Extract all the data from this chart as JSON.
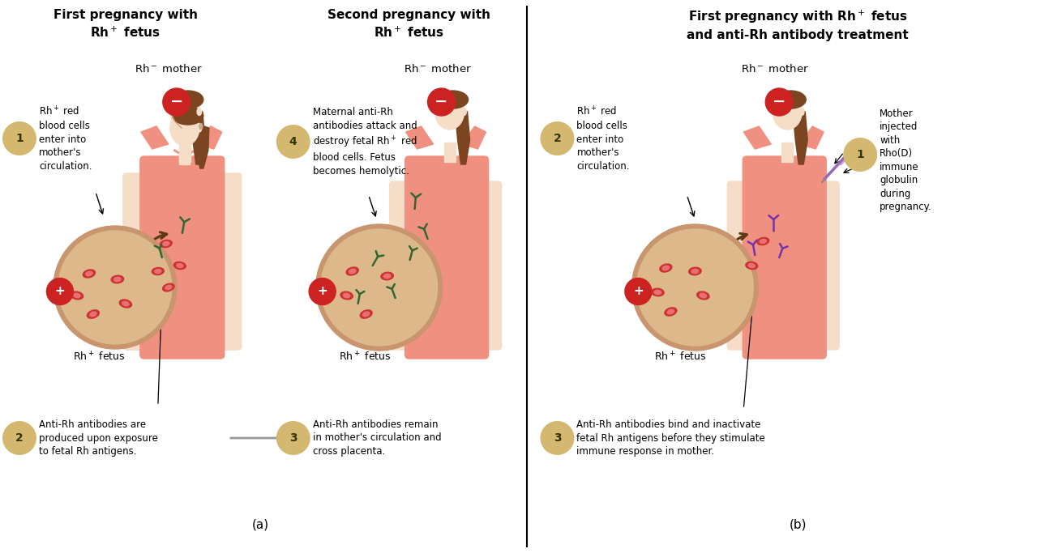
{
  "bg_color": "#ffffff",
  "fig_width": 12.99,
  "fig_height": 6.83,
  "title1": "First pregnancy with\nRh$^+$ fetus",
  "title2": "Second pregnancy with\nRh$^+$ fetus",
  "title3": "First pregnancy with Rh$^+$ fetus\nand anti-Rh antibody treatment",
  "mother_label": "Rh$^-$ mother",
  "fetus_label": "Rh$^+$ fetus",
  "label_a": "(a)",
  "label_b": "(b)",
  "rbc_color": "#cc3333",
  "antibody_green": "#336633",
  "antibody_purple": "#7733aa",
  "womb_outer": "#c8956e",
  "womb_inner": "#ddb88a",
  "skin_color": "#f5ddc8",
  "top_color": "#f09080",
  "hair_color": "#7a4520",
  "step_circle_color": "#d4b870",
  "neg_color": "#cc2222",
  "plus_color": "#cc2222",
  "arrow_dark": "#5c3a10",
  "arrow_gray": "#888888",
  "text_step1a": "Rh$^+$ red\nblood cells\nenter into\nmother's\ncirculation.",
  "text_step2a": "Anti-Rh antibodies are\nproduced upon exposure\nto fetal Rh antigens.",
  "text_step3": "Anti-Rh antibodies remain\nin mother's circulation and\ncross placenta.",
  "text_step4": "Maternal anti-Rh\nantibodies attack and\ndestroy fetal Rh$^+$ red\nblood cells. Fetus\nbecomes hemolytic.",
  "text_step2b": "Rh$^+$ red\nblood cells\nenter into\nmother's\ncirculation.",
  "text_step1b": "Mother\ninjected\nwith\nRho(D)\nimmune\nglobulin\nduring\npregnancy.",
  "text_step3b": "Anti-Rh antibodies bind and inactivate\nfetal Rh antigens before they stimulate\nimmune response in mother."
}
